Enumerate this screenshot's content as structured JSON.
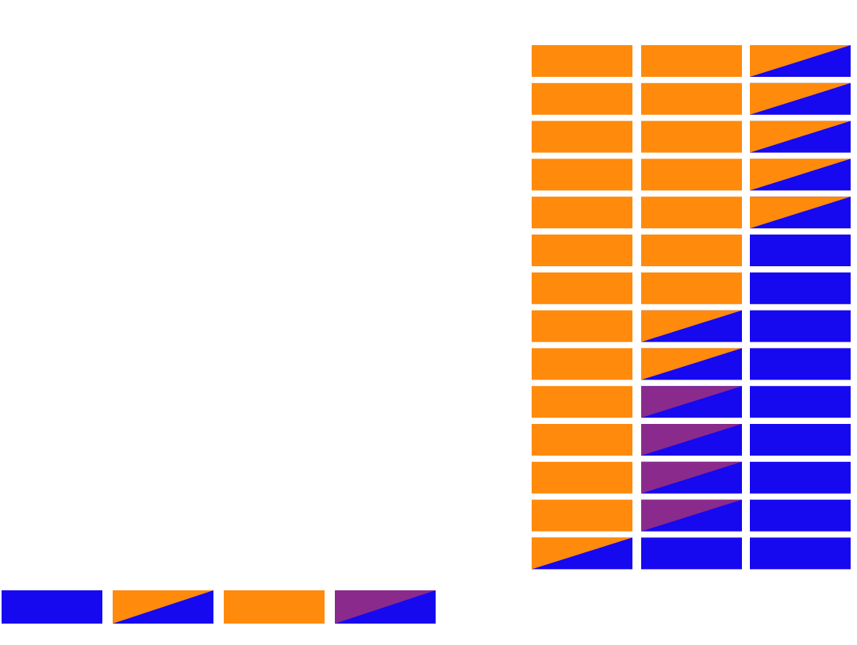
{
  "colors": {
    "orange": "#FF8A0C",
    "blue": "#1608EF",
    "purple": "#8A2A8C",
    "background": "#FFFFFF"
  },
  "tile_types": {
    "O": "solid-orange",
    "B": "solid-blue",
    "OB": "diagonal-orange-over-blue",
    "PB": "diagonal-purple-over-blue"
  },
  "grid": {
    "columns": 3,
    "rows": [
      [
        "O",
        "O",
        "OB"
      ],
      [
        "O",
        "O",
        "OB"
      ],
      [
        "O",
        "O",
        "OB"
      ],
      [
        "O",
        "O",
        "OB"
      ],
      [
        "O",
        "O",
        "OB"
      ],
      [
        "O",
        "O",
        "B"
      ],
      [
        "O",
        "O",
        "B"
      ],
      [
        "O",
        "OB",
        "B"
      ],
      [
        "O",
        "OB",
        "B"
      ],
      [
        "O",
        "PB",
        "B"
      ],
      [
        "O",
        "PB",
        "B"
      ],
      [
        "O",
        "PB",
        "B"
      ],
      [
        "O",
        "PB",
        "B"
      ],
      [
        "OB",
        "B",
        "B"
      ]
    ]
  },
  "legend": {
    "tiles": [
      "B",
      "OB",
      "O",
      "PB"
    ]
  }
}
